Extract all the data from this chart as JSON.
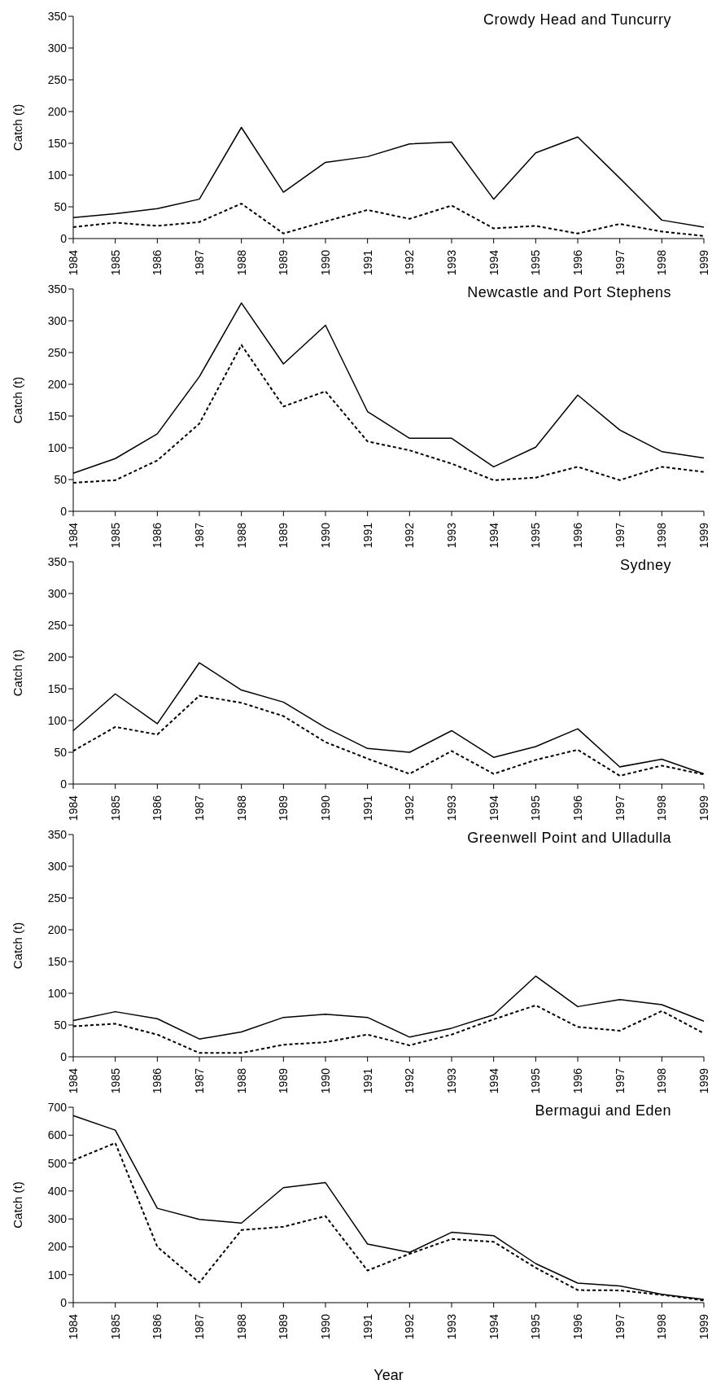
{
  "chart_data": [
    {
      "type": "line",
      "title": "Crowdy Head and Tuncurry",
      "ylabel": "Catch (t)",
      "categories": [
        "1984",
        "1985",
        "1986",
        "1987",
        "1988",
        "1989",
        "1990",
        "1991",
        "1992",
        "1993",
        "1994",
        "1995",
        "1996",
        "1997",
        "1998",
        "1999"
      ],
      "ylim": [
        0,
        350
      ],
      "yticks": [
        0,
        50,
        100,
        150,
        200,
        250,
        300,
        350
      ],
      "marker": "none",
      "series": [
        {
          "color": "#000000",
          "line_style": "solid",
          "values": [
            33,
            39,
            47,
            62,
            175,
            73,
            120,
            129,
            149,
            152,
            62,
            135,
            160,
            95,
            29,
            18
          ]
        },
        {
          "color": "#000000",
          "line_style": "dashed",
          "values": [
            18,
            25,
            20,
            26,
            55,
            8,
            27,
            45,
            31,
            52,
            16,
            20,
            8,
            23,
            11,
            4
          ]
        }
      ]
    },
    {
      "type": "line",
      "title": "Newcastle and Port Stephens",
      "ylabel": "Catch (t)",
      "categories": [
        "1984",
        "1985",
        "1986",
        "1987",
        "1988",
        "1989",
        "1990",
        "1991",
        "1992",
        "1993",
        "1994",
        "1995",
        "1996",
        "1997",
        "1998",
        "1999"
      ],
      "ylim": [
        0,
        350
      ],
      "yticks": [
        0,
        50,
        100,
        150,
        200,
        250,
        300,
        350
      ],
      "marker": "none",
      "series": [
        {
          "color": "#000000",
          "line_style": "solid",
          "values": [
            60,
            83,
            122,
            212,
            328,
            232,
            293,
            157,
            115,
            115,
            70,
            101,
            183,
            128,
            94,
            84
          ]
        },
        {
          "color": "#000000",
          "line_style": "dashed",
          "values": [
            45,
            49,
            80,
            138,
            262,
            165,
            189,
            110,
            96,
            75,
            49,
            53,
            70,
            49,
            70,
            62
          ]
        }
      ]
    },
    {
      "type": "line",
      "title": "Sydney",
      "ylabel": "Catch (t)",
      "categories": [
        "1984",
        "1985",
        "1986",
        "1987",
        "1988",
        "1989",
        "1990",
        "1991",
        "1992",
        "1993",
        "1994",
        "1995",
        "1996",
        "1997",
        "1998",
        "1999"
      ],
      "ylim": [
        0,
        350
      ],
      "yticks": [
        0,
        50,
        100,
        150,
        200,
        250,
        300,
        350
      ],
      "marker": "none",
      "series": [
        {
          "color": "#000000",
          "line_style": "solid",
          "values": [
            84,
            142,
            95,
            191,
            148,
            129,
            89,
            56,
            50,
            84,
            42,
            59,
            87,
            27,
            39,
            16
          ]
        },
        {
          "color": "#000000",
          "line_style": "dashed",
          "values": [
            52,
            90,
            78,
            139,
            128,
            107,
            66,
            40,
            16,
            52,
            16,
            38,
            54,
            13,
            29,
            15
          ]
        }
      ]
    },
    {
      "type": "line",
      "title": "Greenwell Point and Ulladulla",
      "ylabel": "Catch (t)",
      "categories": [
        "1984",
        "1985",
        "1986",
        "1987",
        "1988",
        "1989",
        "1990",
        "1991",
        "1992",
        "1993",
        "1994",
        "1995",
        "1996",
        "1997",
        "1998",
        "1999"
      ],
      "ylim": [
        0,
        350
      ],
      "yticks": [
        0,
        50,
        100,
        150,
        200,
        250,
        300,
        350
      ],
      "marker": "none",
      "series": [
        {
          "color": "#000000",
          "line_style": "solid",
          "values": [
            57,
            71,
            60,
            28,
            39,
            62,
            67,
            62,
            31,
            45,
            66,
            127,
            79,
            90,
            82,
            56
          ]
        },
        {
          "color": "#000000",
          "line_style": "dashed",
          "values": [
            48,
            52,
            35,
            6,
            6,
            19,
            23,
            35,
            18,
            35,
            59,
            81,
            47,
            41,
            72,
            37
          ]
        }
      ]
    },
    {
      "type": "line",
      "title": "Bermagui and Eden",
      "xlabel": "Year",
      "ylabel": "Catch (t)",
      "categories": [
        "1984",
        "1985",
        "1986",
        "1987",
        "1988",
        "1989",
        "1990",
        "1991",
        "1992",
        "1993",
        "1994",
        "1995",
        "1996",
        "1997",
        "1998",
        "1999"
      ],
      "ylim": [
        0,
        700
      ],
      "yticks": [
        0,
        100,
        200,
        300,
        400,
        500,
        600,
        700
      ],
      "marker": "none",
      "series": [
        {
          "color": "#000000",
          "line_style": "solid",
          "values": [
            670,
            618,
            338,
            298,
            285,
            412,
            430,
            210,
            180,
            252,
            240,
            140,
            70,
            60,
            30,
            12
          ]
        },
        {
          "color": "#000000",
          "line_style": "dashed",
          "values": [
            510,
            572,
            200,
            72,
            260,
            272,
            310,
            115,
            175,
            228,
            218,
            125,
            45,
            44,
            28,
            8
          ]
        }
      ]
    }
  ]
}
